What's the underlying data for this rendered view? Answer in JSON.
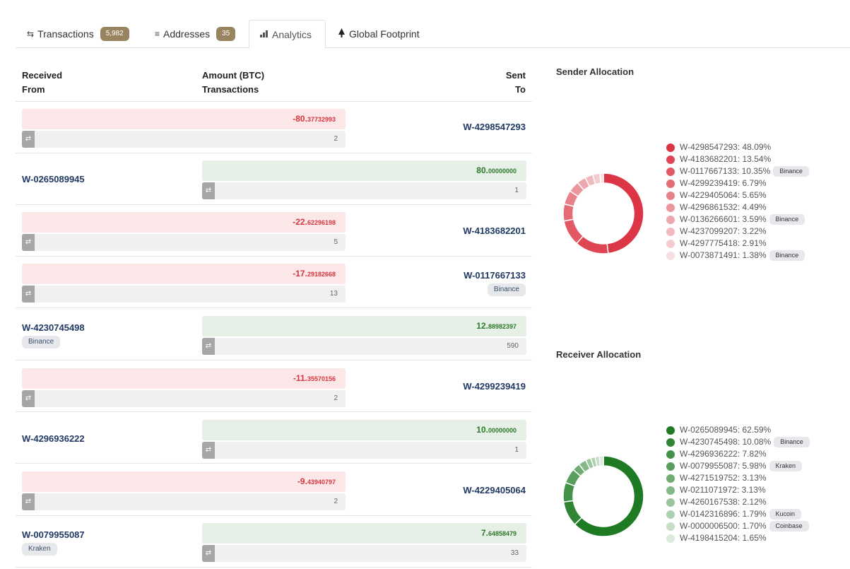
{
  "tabs": [
    {
      "icon": "⇆",
      "label": "Transactions",
      "badge": "5,982"
    },
    {
      "icon": "≡",
      "label": "Addresses",
      "badge": "35"
    },
    {
      "icon": "▮",
      "label": "Analytics",
      "badge": null
    },
    {
      "icon": "▲",
      "label": "Global Footprint",
      "badge": null
    }
  ],
  "table": {
    "header": {
      "received_from_line1": "Received",
      "received_from_line2": "From",
      "amount_line1": "Amount (BTC)",
      "amount_line2": "Transactions",
      "sent_to_line1": "Sent",
      "sent_to_line2": "To"
    },
    "swap_icon": "⇄",
    "rows": [
      {
        "amount_int": "-80.",
        "amount_dec": "37732993",
        "count": "2",
        "to": "W-4298547293"
      },
      {
        "from": "W-0265089945",
        "amount_int": "80.",
        "amount_dec": "00000000",
        "count": "1"
      },
      {
        "amount_int": "-22.",
        "amount_dec": "62296198",
        "count": "5",
        "to": "W-4183682201"
      },
      {
        "amount_int": "-17.",
        "amount_dec": "29182668",
        "count": "13",
        "to": "W-0117667133",
        "to_tag": "Binance"
      },
      {
        "from": "W-4230745498",
        "from_tag": "Binance",
        "amount_int": "12.",
        "amount_dec": "88982397",
        "count": "590"
      },
      {
        "amount_int": "-11.",
        "amount_dec": "35570156",
        "count": "2",
        "to": "W-4299239419"
      },
      {
        "from": "W-4296936222",
        "amount_int": "10.",
        "amount_dec": "00000000",
        "count": "1"
      },
      {
        "amount_int": "-9.",
        "amount_dec": "43940797",
        "count": "2",
        "to": "W-4229405064"
      },
      {
        "from": "W-0079955087",
        "from_tag": "Kraken",
        "amount_int": "7.",
        "amount_dec": "64858479",
        "count": "33"
      }
    ]
  },
  "sender_allocation": {
    "title": "Sender Allocation",
    "items": [
      {
        "label": "W-4298547293: 48.09%",
        "value": 48.09,
        "color": "#dc3545",
        "tag": null
      },
      {
        "label": "W-4183682201: 13.54%",
        "value": 13.54,
        "color": "#df4553",
        "tag": null
      },
      {
        "label": "W-0117667133: 10.35%",
        "value": 10.35,
        "color": "#e25863",
        "tag": "Binance"
      },
      {
        "label": "W-4299239419: 6.79%",
        "value": 6.79,
        "color": "#e56c75",
        "tag": null
      },
      {
        "label": "W-4229405064: 5.65%",
        "value": 5.65,
        "color": "#e8828a",
        "tag": null
      },
      {
        "label": "W-4296861532: 4.49%",
        "value": 4.49,
        "color": "#eb959c",
        "tag": null
      },
      {
        "label": "W-0136266601: 3.59%",
        "value": 3.59,
        "color": "#eea7ad",
        "tag": "Binance"
      },
      {
        "label": "W-4237099207: 3.22%",
        "value": 3.22,
        "color": "#f1b9be",
        "tag": null
      },
      {
        "label": "W-4297775418: 2.91%",
        "value": 2.91,
        "color": "#f4cbcf",
        "tag": null
      },
      {
        "label": "W-0073871491: 1.38%",
        "value": 1.38,
        "color": "#f8dfe1",
        "tag": "Binance"
      }
    ]
  },
  "receiver_allocation": {
    "title": "Receiver Allocation",
    "items": [
      {
        "label": "W-0265089945: 62.59%",
        "value": 62.59,
        "color": "#1f7a24",
        "tag": null
      },
      {
        "label": "W-4230745498: 10.08%",
        "value": 10.08,
        "color": "#2f8534",
        "tag": "Binance"
      },
      {
        "label": "W-4296936222: 7.82%",
        "value": 7.82,
        "color": "#449148",
        "tag": null
      },
      {
        "label": "W-0079955087: 5.98%",
        "value": 5.98,
        "color": "#5a9e5d",
        "tag": "Kraken"
      },
      {
        "label": "W-4271519752: 3.13%",
        "value": 3.13,
        "color": "#70ab72",
        "tag": null
      },
      {
        "label": "W-0211071972: 3.13%",
        "value": 3.13,
        "color": "#85b887",
        "tag": null
      },
      {
        "label": "W-4260167538: 2.12%",
        "value": 2.12,
        "color": "#9ac49b",
        "tag": null
      },
      {
        "label": "W-0142316896: 1.79%",
        "value": 1.79,
        "color": "#b0d1b1",
        "tag": "Kucoin"
      },
      {
        "label": "W-0000006500: 1.70%",
        "value": 1.7,
        "color": "#c6ddc6",
        "tag": "Coinbase"
      },
      {
        "label": "W-4198415204: 1.65%",
        "value": 1.65,
        "color": "#dceadc",
        "tag": null
      }
    ]
  },
  "colors": {
    "accent_badge": "#98855f",
    "negative": "#d8353f",
    "positive": "#2c7a2c",
    "address": "#203a64"
  }
}
